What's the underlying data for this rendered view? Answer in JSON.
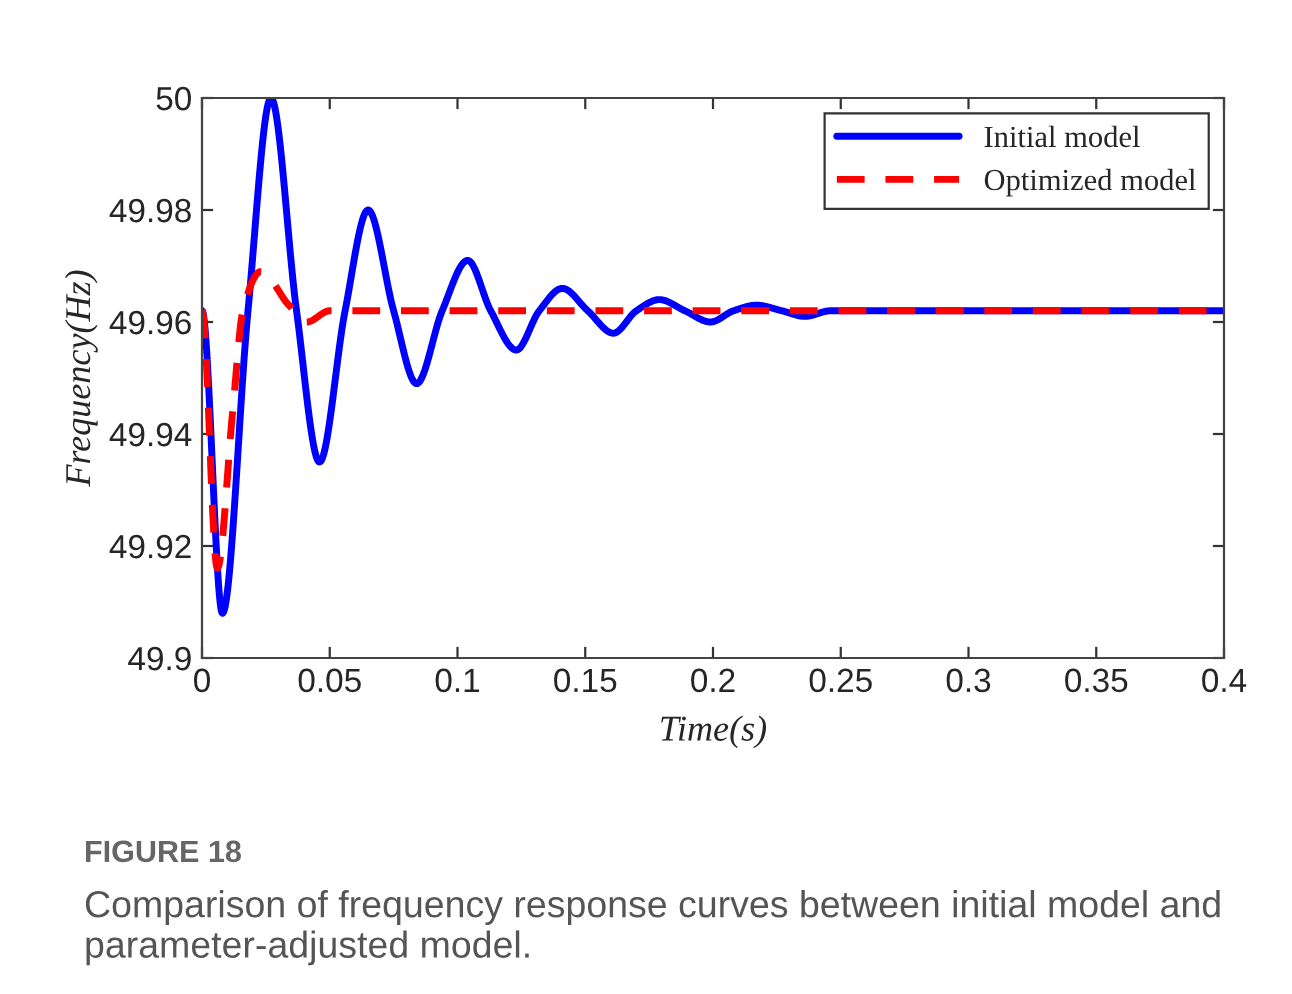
{
  "chart_data": {
    "type": "line",
    "xlabel": "Time(s)",
    "ylabel": "Frequency(Hz)",
    "xlim": [
      0,
      0.4
    ],
    "xticks": [
      0,
      0.05,
      0.1,
      0.15,
      0.2,
      0.25,
      0.3,
      0.35,
      0.4
    ],
    "ylim": [
      49.9,
      50
    ],
    "yticks": [
      49.9,
      49.92,
      49.94,
      49.96,
      49.98,
      50
    ],
    "grid": false,
    "legend": "top right",
    "series": [
      {
        "name": "Initial model",
        "color": "#0000ff",
        "line_style": "solid",
        "x": [
          0,
          0.008,
          0.018,
          0.027,
          0.037,
          0.046,
          0.056,
          0.065,
          0.075,
          0.084,
          0.094,
          0.104,
          0.113,
          0.123,
          0.132,
          0.141,
          0.151,
          0.161,
          0.17,
          0.179,
          0.189,
          0.199,
          0.208,
          0.217,
          0.227,
          0.236,
          0.246,
          0.4
        ],
        "values": [
          49.962,
          49.908,
          49.962,
          50.0,
          49.962,
          49.935,
          49.962,
          49.98,
          49.962,
          49.949,
          49.962,
          49.971,
          49.962,
          49.955,
          49.962,
          49.966,
          49.962,
          49.958,
          49.962,
          49.964,
          49.962,
          49.96,
          49.962,
          49.963,
          49.962,
          49.961,
          49.962,
          49.962
        ]
      },
      {
        "name": "Optimized model",
        "color": "#ff0000",
        "line_style": "dashed",
        "x": [
          0,
          0.006,
          0.012,
          0.016,
          0.023,
          0.034,
          0.041,
          0.05,
          0.4
        ],
        "values": [
          49.962,
          49.916,
          49.944,
          49.962,
          49.969,
          49.963,
          49.96,
          49.962,
          49.962
        ]
      }
    ],
    "annotations": [
      "FIGURE 18",
      "Comparison of frequency response curves between initial model and parameter-adjusted model."
    ]
  }
}
